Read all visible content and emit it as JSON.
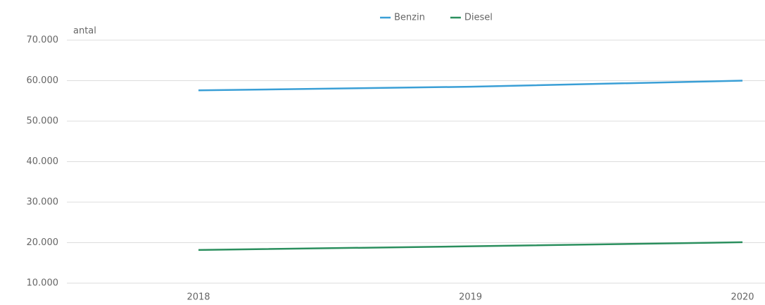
{
  "chart_data": {
    "type": "line",
    "y_label": "antal",
    "categories": [
      "2018",
      "2019",
      "2020"
    ],
    "series": [
      {
        "name": "Benzin",
        "color": "#3a9fd6",
        "values": [
          57600,
          58500,
          60000
        ]
      },
      {
        "name": "Diesel",
        "color": "#2b8f5e",
        "values": [
          18200,
          19100,
          20100
        ]
      }
    ],
    "ylim": [
      10000,
      70000
    ],
    "yticks": [
      {
        "value": 10000,
        "label": "10.000"
      },
      {
        "value": 20000,
        "label": "20.000"
      },
      {
        "value": 30000,
        "label": "30.000"
      },
      {
        "value": 40000,
        "label": "40.000"
      },
      {
        "value": 50000,
        "label": "50.000"
      },
      {
        "value": 60000,
        "label": "60.000"
      },
      {
        "value": 70000,
        "label": "70.000"
      }
    ],
    "grid": true,
    "legend": "top"
  }
}
